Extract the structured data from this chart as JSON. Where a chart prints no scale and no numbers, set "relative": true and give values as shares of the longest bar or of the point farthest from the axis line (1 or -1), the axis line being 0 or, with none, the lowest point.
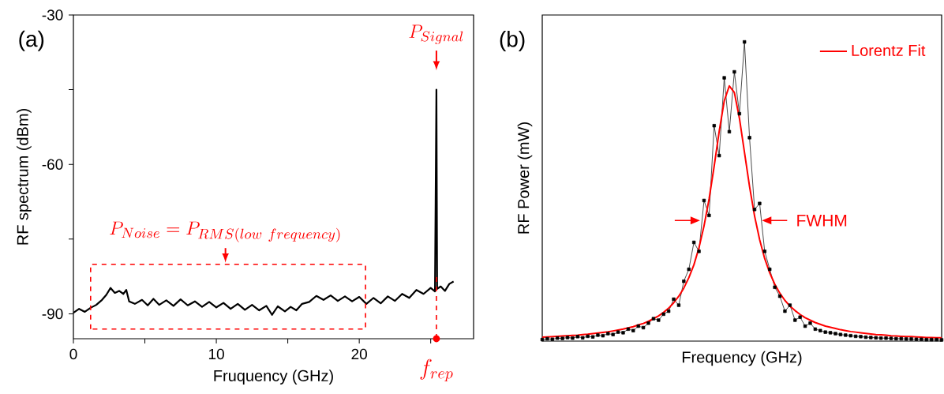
{
  "chart_data": [
    {
      "type": "line",
      "xlabel": "Fruquency (GHz)",
      "ylabel": "RF spectrum (dBm)",
      "color": "#000000",
      "x": [
        0,
        0.4,
        0.8,
        1.2,
        1.6,
        2.0,
        2.3,
        2.6,
        2.9,
        3.2,
        3.5,
        3.7,
        3.9,
        4.3,
        4.8,
        5.2,
        5.6,
        6.0,
        6.5,
        7.0,
        7.5,
        8.0,
        8.5,
        9.0,
        9.5,
        10.0,
        10.5,
        11.0,
        11.5,
        12.0,
        12.5,
        13.0,
        13.5,
        13.9,
        14.3,
        14.8,
        15.2,
        15.6,
        16.0,
        16.5,
        17.0,
        17.5,
        18.0,
        18.5,
        19.0,
        19.5,
        20.0,
        20.5,
        21.0,
        21.5,
        22.0,
        22.5,
        23.0,
        23.5,
        24.0,
        24.5,
        25.0,
        25.3,
        25.4,
        25.45,
        25.7,
        26.0,
        26.3,
        26.6
      ],
      "values": [
        -89.8,
        -89.0,
        -89.6,
        -88.8,
        -88.2,
        -87.2,
        -86.2,
        -84.8,
        -85.8,
        -85.4,
        -86.0,
        -85.2,
        -87.5,
        -88.0,
        -87.2,
        -88.3,
        -87.0,
        -88.2,
        -87.3,
        -88.4,
        -87.1,
        -88.3,
        -87.5,
        -88.6,
        -87.6,
        -88.7,
        -87.8,
        -89.0,
        -88.0,
        -89.2,
        -88.2,
        -89.3,
        -88.4,
        -90.2,
        -88.5,
        -89.5,
        -88.6,
        -89.3,
        -88.0,
        -87.6,
        -86.4,
        -87.2,
        -86.3,
        -87.4,
        -86.5,
        -87.5,
        -86.6,
        -88.0,
        -86.8,
        -87.9,
        -86.5,
        -87.4,
        -86.0,
        -86.8,
        -85.2,
        -86.0,
        -84.8,
        -85.5,
        -45,
        -85.0,
        -84.5,
        -85.4,
        -84.0,
        -83.5
      ],
      "xlim": [
        0,
        28
      ],
      "ylim": [
        -95,
        -30
      ],
      "xticks": [
        0,
        {
          "value": 5,
          "label": null
        },
        10,
        {
          "value": 15,
          "label": null
        },
        20,
        {
          "value": 25,
          "label": null
        }
      ],
      "yticks": [
        -90,
        {
          "value": -75,
          "label": null
        },
        -60,
        {
          "value": -45,
          "label": null
        },
        -30
      ],
      "ref_lines": [
        {
          "axis": "x",
          "value": 25.4,
          "label": "f_{rep}",
          "color": "#ff0000",
          "line_style": "dashed"
        }
      ],
      "annotations": [
        "(a)",
        {
          "text": "P_{Signal}",
          "x": 25.4,
          "y": -45
        },
        "P_{Noise} = P_{RMS(low\\ frequency)}"
      ]
    },
    {
      "type": "line",
      "relative": true,
      "xlabel": "Frequency (GHz)",
      "ylabel": "RF Power (mW)",
      "legend": "top right",
      "categories": [
        null,
        null,
        null,
        null,
        null,
        null,
        null,
        null,
        null,
        null,
        null,
        null,
        null,
        null,
        null,
        null,
        null,
        null,
        null,
        null,
        null,
        null,
        null,
        null,
        null,
        null,
        null,
        null,
        null,
        null,
        null,
        null,
        null,
        null,
        null,
        null,
        null,
        null,
        null,
        null,
        null,
        null,
        null,
        null,
        null,
        null,
        null,
        null,
        null,
        null,
        null,
        null,
        null,
        null,
        null,
        null,
        null,
        null,
        null,
        null,
        null,
        null,
        null,
        null,
        null,
        null,
        null,
        null,
        null,
        null,
        null,
        null,
        null,
        null,
        null,
        null,
        null,
        null,
        null,
        null
      ],
      "series": [
        {
          "color": "#000000",
          "marker": "square",
          "values": [
            0.005,
            0.008,
            0.006,
            0.01,
            0.009,
            0.012,
            0.01,
            0.015,
            0.011,
            0.016,
            0.014,
            0.02,
            0.018,
            0.025,
            0.022,
            0.03,
            0.028,
            0.04,
            0.035,
            0.05,
            0.045,
            0.06,
            0.075,
            0.07,
            0.09,
            0.1,
            0.14,
            0.12,
            0.2,
            0.24,
            0.33,
            0.3,
            0.47,
            0.42,
            0.72,
            0.62,
            0.88,
            0.7,
            0.9,
            0.76,
            1.0,
            0.68,
            0.44,
            0.46,
            0.3,
            0.24,
            0.18,
            0.15,
            0.1,
            0.12,
            0.07,
            0.08,
            0.05,
            0.06,
            0.04,
            0.035,
            0.03,
            0.028,
            0.025,
            0.022,
            0.02,
            0.018,
            0.016,
            0.015,
            0.013,
            0.012,
            0.011,
            0.01,
            0.01,
            0.009,
            0.008,
            0.008,
            0.007,
            0.007,
            0.006,
            0.006,
            0.005,
            0.005,
            0.005,
            0.004
          ]
        },
        {
          "name": "Lorentz Fit",
          "color": "#ff0000",
          "marker": "none",
          "values": [
            0.013,
            0.014,
            0.015,
            0.016,
            0.017,
            0.018,
            0.019,
            0.02,
            0.022,
            0.023,
            0.025,
            0.027,
            0.029,
            0.031,
            0.034,
            0.037,
            0.04,
            0.044,
            0.048,
            0.054,
            0.059,
            0.066,
            0.075,
            0.084,
            0.096,
            0.11,
            0.128,
            0.15,
            0.177,
            0.212,
            0.255,
            0.312,
            0.385,
            0.475,
            0.584,
            0.701,
            0.803,
            0.853,
            0.831,
            0.745,
            0.631,
            0.517,
            0.418,
            0.339,
            0.276,
            0.228,
            0.19,
            0.16,
            0.136,
            0.117,
            0.102,
            0.089,
            0.078,
            0.07,
            0.062,
            0.056,
            0.05,
            0.046,
            0.042,
            0.038,
            0.035,
            0.032,
            0.03,
            0.028,
            0.026,
            0.024,
            0.022,
            0.021,
            0.02,
            0.018,
            0.017,
            0.016,
            0.015,
            0.015,
            0.014,
            0.013,
            0.012,
            0.012,
            0.011,
            0.011
          ]
        }
      ],
      "annotations": [
        "(b)",
        "FWHM"
      ]
    }
  ]
}
